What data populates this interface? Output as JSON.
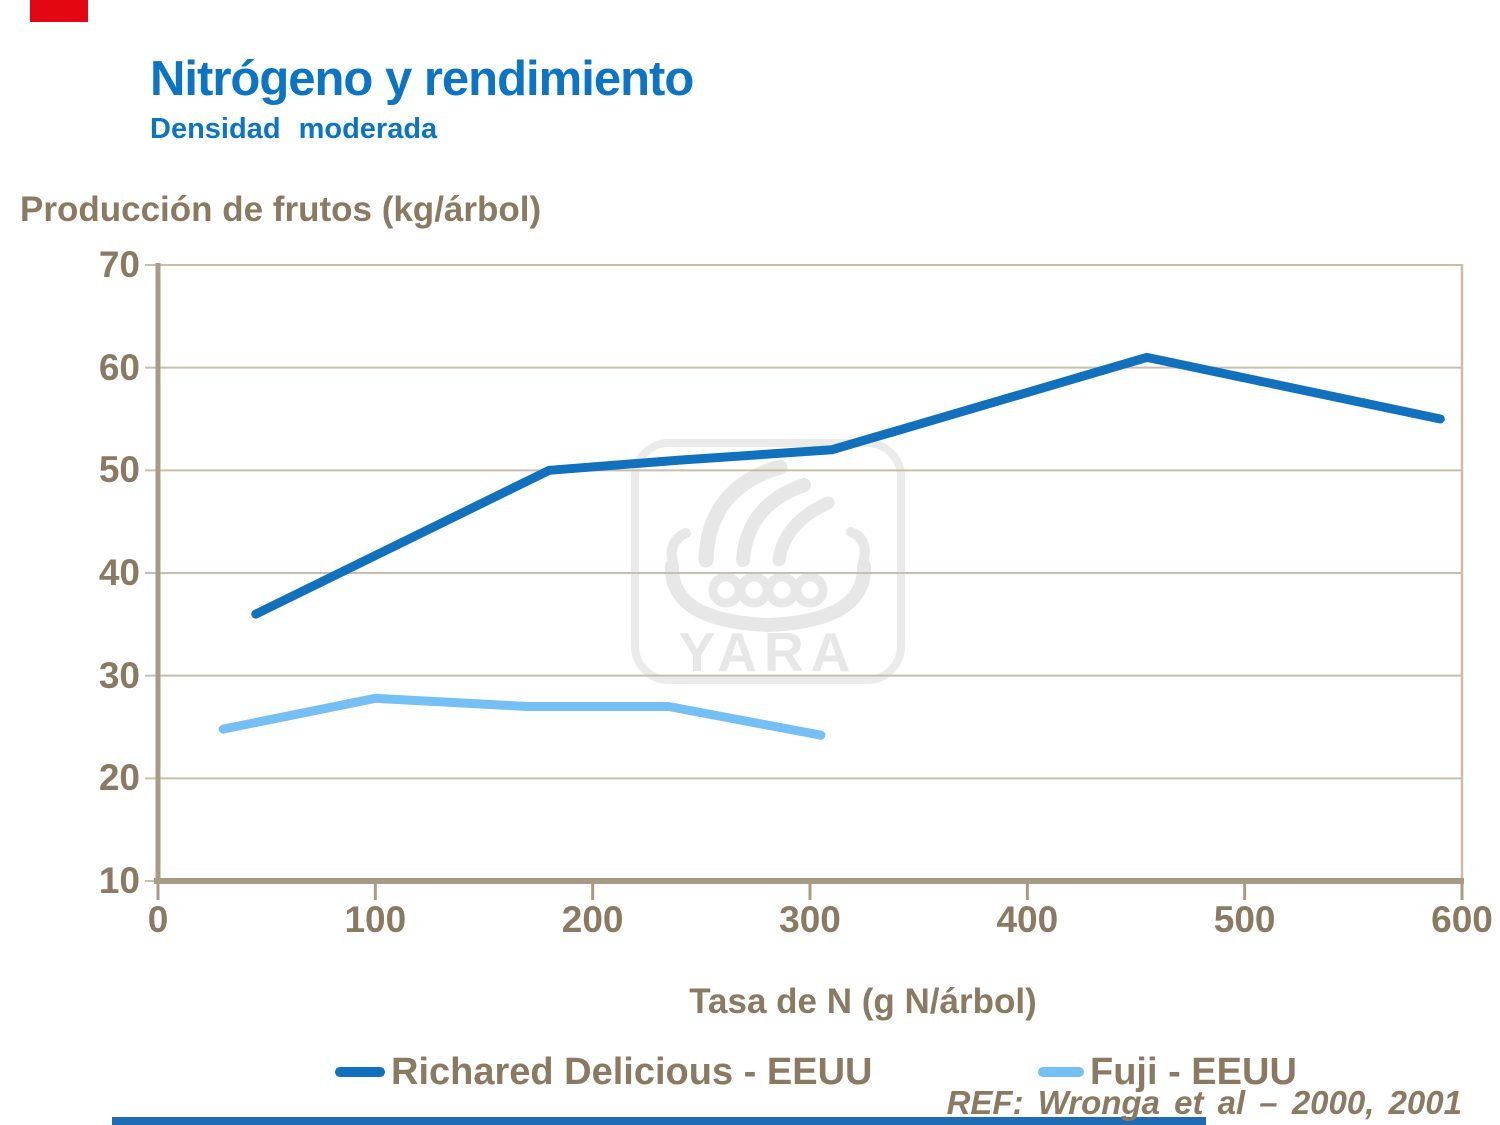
{
  "slide": {
    "title": "Nitrógeno y rendimiento",
    "subtitle": "Densidad moderada",
    "reference": "REF: Wronga et al – 2000, 2001"
  },
  "watermark": {
    "text": "YARA"
  },
  "colors": {
    "title_blue": "#0B74C4",
    "text_brown": "#8A7A62",
    "template_red": "#E30613",
    "template_blue": "#1F6CB4",
    "watermark_gray": "#E7E7E7"
  },
  "chart_data": {
    "type": "line",
    "title": "Nitrógeno y rendimiento — Densidad moderada",
    "ylabel": "Producción de frutos (kg/árbol)",
    "xlabel": "Tasa de N (g N/árbol)",
    "xlim": [
      0,
      600
    ],
    "ylim": [
      10,
      70
    ],
    "xticks": [
      0,
      100,
      200,
      300,
      400,
      500,
      600
    ],
    "yticks": [
      10,
      20,
      30,
      40,
      50,
      60,
      70
    ],
    "grid": true,
    "legend_position": "bottom",
    "axis_color": "#A79B85",
    "grid_color": "#C9BEAC",
    "series": [
      {
        "name": "Richared Delicious - EEUU",
        "color": "#1171BD",
        "points": [
          [
            45,
            36
          ],
          [
            180,
            50
          ],
          [
            240,
            51
          ],
          [
            310,
            52
          ],
          [
            455,
            61
          ],
          [
            590,
            55
          ]
        ]
      },
      {
        "name": "Fuji - EEUU",
        "color": "#74C0F4",
        "points": [
          [
            30,
            24.8
          ],
          [
            100,
            27.8
          ],
          [
            170,
            27
          ],
          [
            235,
            27
          ],
          [
            305,
            24.2
          ]
        ]
      }
    ]
  }
}
